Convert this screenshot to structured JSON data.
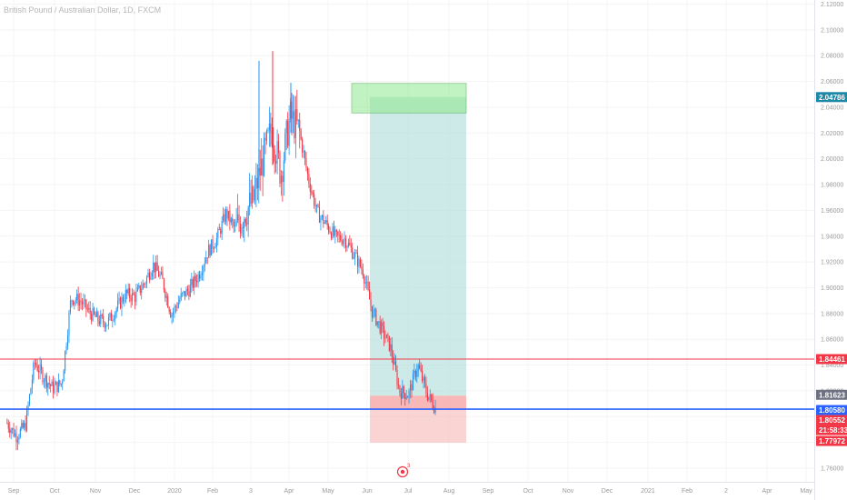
{
  "chart_title": "British Pound / Australian Dollar, 1D, FXCM",
  "chart_data": {
    "type": "candlestick",
    "symbol": "GBPAUD",
    "title": "British Pound / Australian Dollar, 1D, FXCM",
    "y_ticks": [
      "2.12000",
      "2.10000",
      "2.08000",
      "2.06000",
      "2.04000",
      "2.02000",
      "2.00000",
      "1.98000",
      "1.96000",
      "1.94000",
      "1.92000",
      "1.90000",
      "1.88000",
      "1.86000",
      "1.84000",
      "1.82000",
      "1.80000",
      "1.78000",
      "1.76000"
    ],
    "ylim": [
      1.7445,
      2.1245
    ],
    "x_ticks": [
      "Sep",
      "Oct",
      "Nov",
      "Dec",
      "2020",
      "Feb",
      "3",
      "Apr",
      "May",
      "Jun",
      "Jul",
      "Aug",
      "Sep",
      "Oct",
      "Nov",
      "Dec",
      "2021",
      "Feb",
      "2",
      "Apr",
      "May"
    ],
    "close_path": [
      [
        "Aug 27",
        1.795
      ],
      [
        "Sep 3",
        1.785
      ],
      [
        "Sep 10",
        1.793
      ],
      [
        "Sep 17",
        1.842
      ],
      [
        "Sep 24",
        1.831
      ],
      [
        "Oct 1",
        1.822
      ],
      [
        "Oct 8",
        1.826
      ],
      [
        "Oct 15",
        1.892
      ],
      [
        "Oct 22",
        1.89
      ],
      [
        "Oct 29",
        1.881
      ],
      [
        "Nov 5",
        1.875
      ],
      [
        "Nov 12",
        1.873
      ],
      [
        "Nov 19",
        1.884
      ],
      [
        "Nov 26",
        1.895
      ],
      [
        "Dec 3",
        1.893
      ],
      [
        "Dec 10",
        1.903
      ],
      [
        "Dec 17",
        1.918
      ],
      [
        "Dec 24",
        1.906
      ],
      [
        "Dec 31",
        1.879
      ],
      [
        "Jan 7",
        1.892
      ],
      [
        "Jan 14",
        1.899
      ],
      [
        "Jan 21",
        1.91
      ],
      [
        "Jan 28",
        1.928
      ],
      [
        "Feb 4",
        1.938
      ],
      [
        "Feb 11",
        1.958
      ],
      [
        "Feb 18",
        1.945
      ],
      [
        "Feb 25",
        1.958
      ],
      [
        "Mar 3",
        1.968
      ],
      [
        "Mar 10",
        1.998
      ],
      [
        "Mar 17",
        2.024
      ],
      [
        "Mar 24",
        1.988
      ],
      [
        "Mar 31",
        2.033
      ],
      [
        "Apr 7",
        2.022
      ],
      [
        "Apr 14",
        1.985
      ],
      [
        "Apr 21",
        1.958
      ],
      [
        "Apr 28",
        1.949
      ],
      [
        "May 5",
        1.939
      ],
      [
        "May 12",
        1.938
      ],
      [
        "May 19",
        1.926
      ],
      [
        "May 26",
        1.913
      ],
      [
        "Jun 2",
        1.882
      ],
      [
        "Jun 9",
        1.868
      ],
      [
        "Jun 16",
        1.854
      ],
      [
        "Jun 23",
        1.82
      ],
      [
        "Jun 30",
        1.817
      ],
      [
        "Jul 7",
        1.84
      ],
      [
        "Jul 14",
        1.818
      ],
      [
        "Jul 21",
        1.806
      ]
    ],
    "horizontal_lines": [
      {
        "price": 1.84461,
        "color": "#f23645"
      },
      {
        "price": 1.8058,
        "color": "#2962ff"
      }
    ],
    "position_tool": {
      "type": "long",
      "entry": 1.81623,
      "target": 2.04786,
      "stop": 1.77972,
      "profit_color": "#b2dfdb",
      "loss_color": "#f7b6b6"
    },
    "target_zone": {
      "top": 2.0585,
      "bottom": 2.0355,
      "color": "#8fe88f"
    },
    "price_labels": [
      {
        "text": "2.04786",
        "bg": "#1e88a8"
      },
      {
        "text": "1.84461",
        "bg": "#f23645"
      },
      {
        "text": "1.81623",
        "bg": "#6e7182"
      },
      {
        "text": "1.80580",
        "bg": "#2962ff"
      },
      {
        "text": "1.80552",
        "bg": "#f23645"
      },
      {
        "text": "21:58:33",
        "bg": "#f23645"
      },
      {
        "text": "1.77972",
        "bg": "#f23645"
      }
    ],
    "event_marker": {
      "count": "3",
      "color": "#f23645"
    },
    "colors": {
      "up": "#2196f3",
      "down": "#f23645",
      "grid": "#f3f3f3",
      "axis_text": "#9a9a9a"
    }
  }
}
